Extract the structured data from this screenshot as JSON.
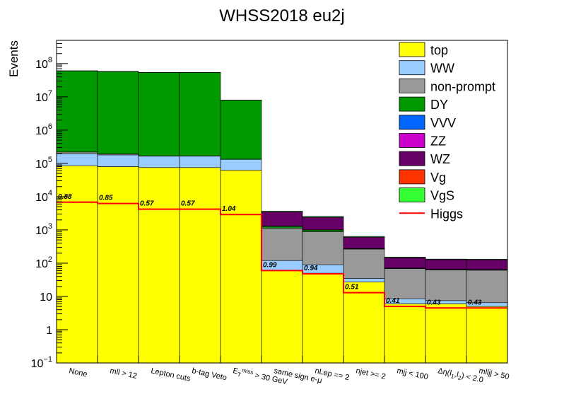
{
  "chart_data": {
    "type": "bar",
    "stacked": true,
    "title": "WHSS2018 eu2j",
    "ylabel": "Events",
    "xlabel": "",
    "yscale": "log",
    "ylim": [
      0.1,
      500000000
    ],
    "y_ticks": [
      {
        "value": 0.1,
        "mant": "10",
        "exp": "−1"
      },
      {
        "value": 1,
        "mant": "1",
        "exp": ""
      },
      {
        "value": 10,
        "mant": "10",
        "exp": ""
      },
      {
        "value": 100,
        "mant": "10",
        "exp": "2"
      },
      {
        "value": 1000,
        "mant": "10",
        "exp": "3"
      },
      {
        "value": 10000,
        "mant": "10",
        "exp": "4"
      },
      {
        "value": 100000,
        "mant": "10",
        "exp": "5"
      },
      {
        "value": 1000000,
        "mant": "10",
        "exp": "6"
      },
      {
        "value": 10000000,
        "mant": "10",
        "exp": "7"
      },
      {
        "value": 100000000,
        "mant": "10",
        "exp": "8"
      }
    ],
    "categories": [
      "None",
      "mll > 12",
      "Lepton cuts",
      "b-tag Veto",
      "E_T^miss > 30 GeV",
      "same sign e-μ",
      "nLep == 2",
      "njet >= 2",
      "mjj < 100",
      "Δη(l_1,l_2) < 2.0",
      "mlljj > 50"
    ],
    "category_labels": [
      {
        "main": "None"
      },
      {
        "main": "mll > 12"
      },
      {
        "main": "Lepton cuts"
      },
      {
        "main": "b-tag Veto"
      },
      {
        "main": "E",
        "sub": "T",
        "sup": "miss",
        "tail": " > 30 GeV"
      },
      {
        "main": "same sign e-μ"
      },
      {
        "main": "nLep == 2"
      },
      {
        "main": "njet >= 2"
      },
      {
        "main": "mjj < 100"
      },
      {
        "main": "Δη(l",
        "sub": "1",
        "mid": ",l",
        "sub2": "2",
        "tail": ") < 2.0"
      },
      {
        "main": "mlljj > 50"
      }
    ],
    "series": [
      {
        "name": "top",
        "color": "#ffff00",
        "values": [
          85000,
          80000,
          75000,
          75000,
          62000,
          60,
          50,
          27,
          6,
          6,
          5
        ]
      },
      {
        "name": "WW",
        "color": "#99ccff",
        "values": [
          110000,
          100000,
          90000,
          90000,
          70000,
          60,
          40,
          8,
          2.5,
          1.5,
          1.5
        ]
      },
      {
        "name": "non-prompt",
        "color": "#999999",
        "values": [
          25000,
          12000,
          3500,
          3500,
          1800,
          1000,
          800,
          230,
          60,
          55,
          55
        ]
      },
      {
        "name": "DY",
        "color": "#009900",
        "values": [
          60000000,
          58000000,
          54000000,
          54000000,
          7800000,
          150,
          100,
          6,
          1,
          1,
          1
        ]
      },
      {
        "name": "VVV",
        "color": "#0066ff",
        "values": [
          3,
          3,
          3,
          3,
          3,
          3,
          3,
          2,
          1,
          1,
          1
        ]
      },
      {
        "name": "ZZ",
        "color": "#cc00cc",
        "values": [
          40,
          38,
          35,
          35,
          30,
          25,
          20,
          4,
          1,
          1,
          1
        ]
      },
      {
        "name": "WZ",
        "color": "#660066",
        "values": [
          2000,
          1800,
          1600,
          1600,
          1300,
          2200,
          1400,
          330,
          75,
          62,
          62
        ]
      },
      {
        "name": "Vg",
        "color": "#ff3300",
        "values": [
          30,
          25,
          20,
          20,
          15,
          8,
          6,
          2,
          0.5,
          0.5,
          0.5
        ]
      },
      {
        "name": "VgS",
        "color": "#33ff33",
        "values": [
          300,
          280,
          250,
          250,
          200,
          150,
          120,
          30,
          6,
          5,
          5
        ]
      }
    ],
    "higgs": {
      "name": "Higgs",
      "color": "#ff0000",
      "values": [
        6800,
        6200,
        4200,
        4200,
        2900,
        60,
        48,
        13,
        5,
        4.5,
        4.5
      ]
    },
    "higgs_ratios": [
      "0.88",
      "0.85",
      "0.57",
      "0.57",
      "1.04",
      "0.99",
      "0.94",
      "0.51",
      "0.41",
      "0.43",
      "0.43"
    ],
    "legend_position": "top-right"
  }
}
